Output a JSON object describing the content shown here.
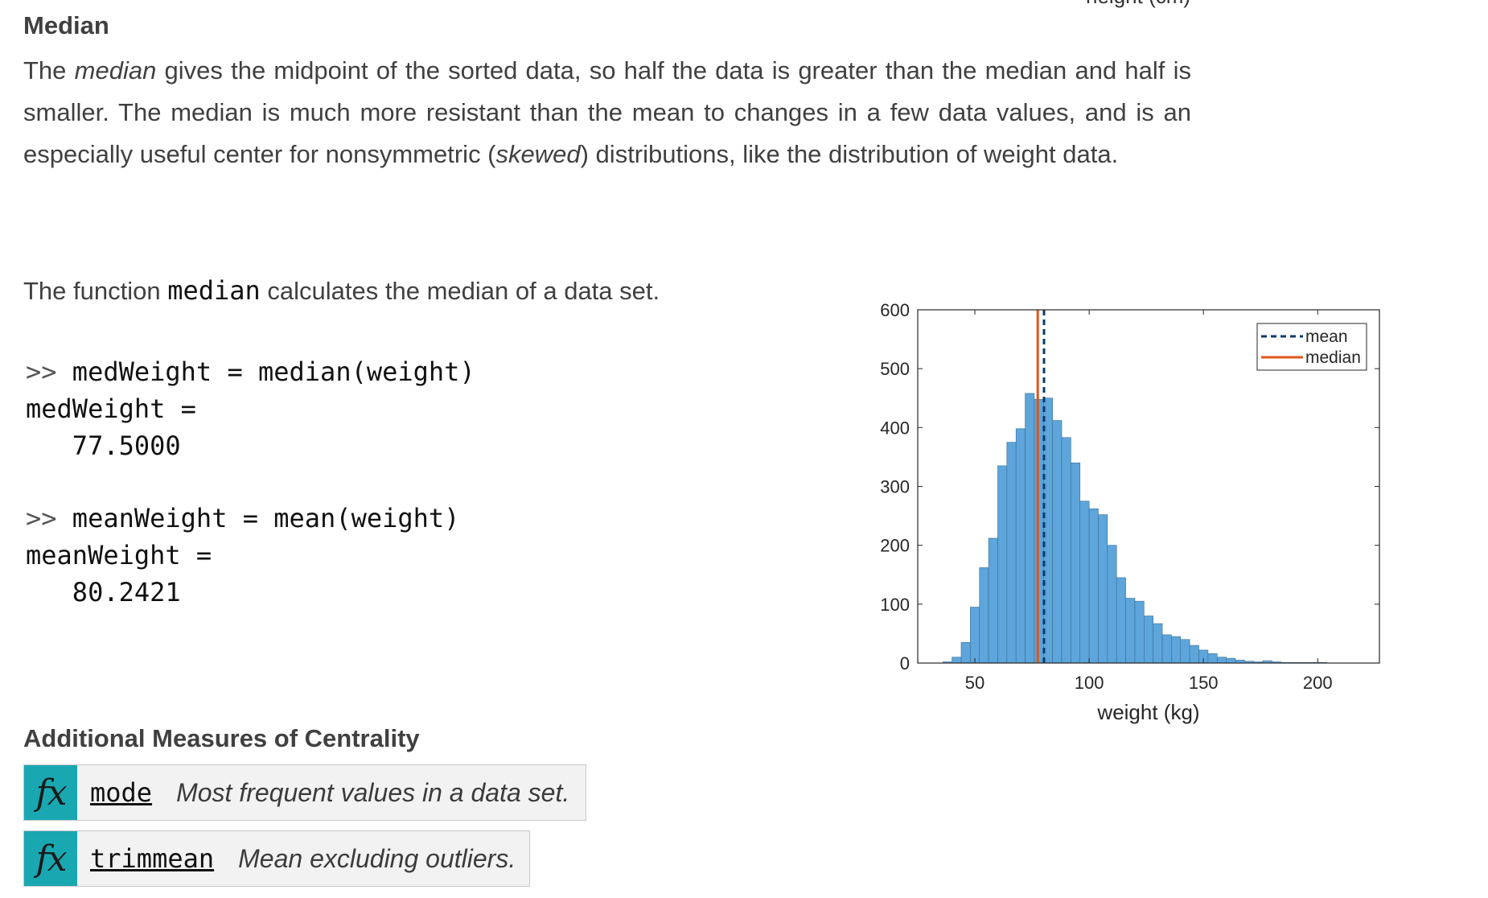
{
  "top_cut_text": "height (cm)",
  "median_section": {
    "heading": "Median",
    "para_before_median": "The ",
    "para_median_em": "median",
    "para_middle": " gives the midpoint of the sorted data, so half the data is greater than the median and half is smaller. The median is much more resistant than the mean to changes in a few data values, and is an especially useful center for nonsymmetric (",
    "para_skewed_em": "skewed",
    "para_after": ") distributions, like the distribution of weight data."
  },
  "function_sentence": {
    "before": "The function ",
    "code": "median",
    "after": " calculates the median of a data set."
  },
  "code_block": {
    "prompt": ">> ",
    "cmd1": "medWeight = median(weight)",
    "out1_label": "medWeight =",
    "out1_value": "   77.5000",
    "cmd2": "meanWeight = mean(weight)",
    "out2_label": "meanWeight =",
    "out2_value": "   80.2421"
  },
  "additional": {
    "heading": "Additional Measures of Centrality",
    "items": [
      {
        "icon": "fx",
        "name": "mode",
        "desc": "Most frequent values in a data set."
      },
      {
        "icon": "fx",
        "name": "trimmean",
        "desc": "Mean excluding outliers."
      }
    ]
  },
  "colors": {
    "bar_fill": "#5DA5DA",
    "bar_stroke": "#3a6f96",
    "mean_line": "#0a3a6e",
    "median_line": "#e0561b",
    "icon_bg": "#19a8b1"
  },
  "chart_data": {
    "type": "bar",
    "title": "",
    "xlabel": "weight (kg)",
    "ylabel": "",
    "xlim": [
      25,
      227
    ],
    "ylim": [
      0,
      600
    ],
    "xticks": [
      50,
      100,
      150,
      200
    ],
    "yticks": [
      0,
      100,
      200,
      300,
      400,
      500,
      600
    ],
    "bin_width": 4,
    "bin_start": 36,
    "values": [
      2,
      10,
      35,
      95,
      162,
      212,
      335,
      375,
      398,
      458,
      448,
      450,
      412,
      383,
      340,
      275,
      262,
      252,
      200,
      145,
      110,
      105,
      80,
      67,
      48,
      45,
      40,
      30,
      22,
      16,
      10,
      8,
      5,
      3,
      2,
      4,
      2,
      1,
      1,
      1,
      1,
      1,
      0,
      0,
      0,
      0
    ],
    "mean": 80.2421,
    "median": 77.5,
    "legend": {
      "placement": "top-right",
      "entries": [
        {
          "name": "mean",
          "style": "dashed"
        },
        {
          "name": "median",
          "style": "solid"
        }
      ]
    },
    "grid": false
  }
}
